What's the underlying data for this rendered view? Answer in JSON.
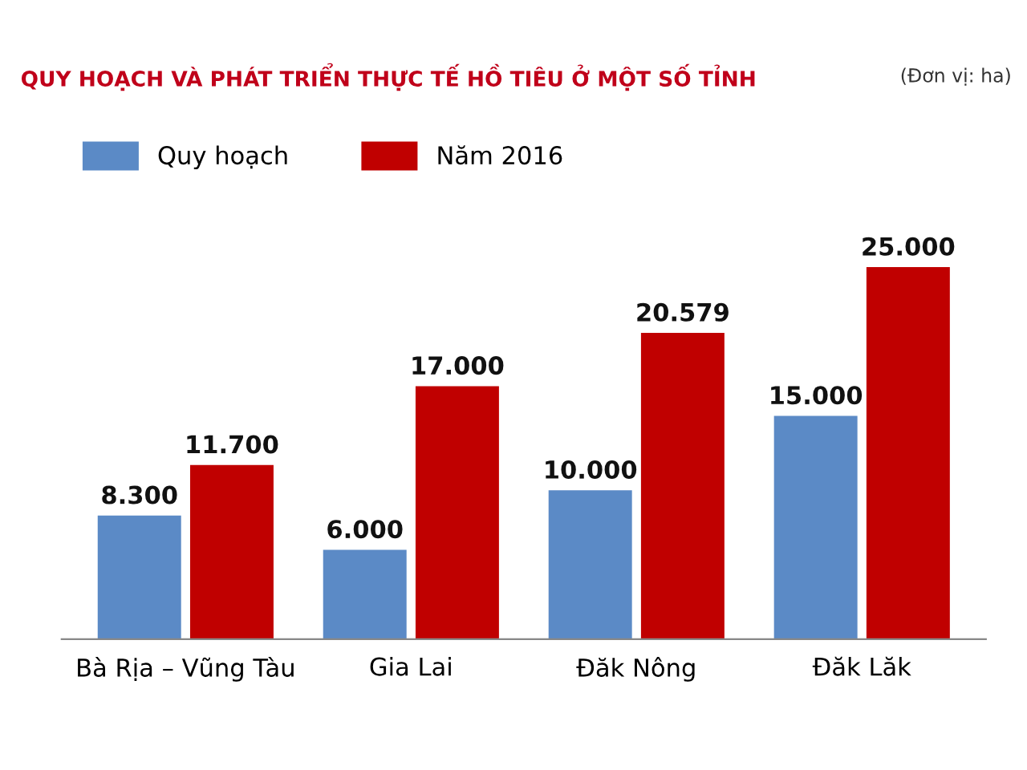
{
  "chart_data": {
    "type": "bar",
    "title": "QUY HOẠCH VÀ PHÁT TRIỂN THỰC TẾ HỒ TIÊU Ở MỘT SỐ TỈNH",
    "subtitle": "(Đơn vị: ha)",
    "categories": [
      "Bà Rịa – Vũng Tàu",
      "Gia Lai",
      "Đăk Nông",
      "Đăk Lăk"
    ],
    "series": [
      {
        "name": "Quy hoạch",
        "color": "#5b8ac6",
        "values": [
          8300,
          6000,
          10000,
          15000
        ],
        "value_labels": [
          "8.300",
          "6.000",
          "10.000",
          "15.000"
        ]
      },
      {
        "name": "Năm 2016",
        "color": "#c00000",
        "values": [
          11700,
          17000,
          20579,
          25000
        ],
        "value_labels": [
          "11.700",
          "17.000",
          "20.579",
          "25.000"
        ]
      }
    ],
    "legend": "top left",
    "grid": false
  }
}
